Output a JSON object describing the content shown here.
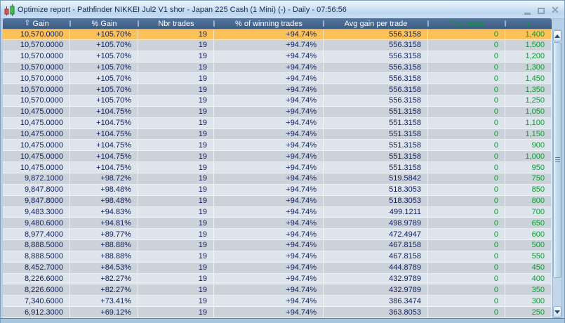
{
  "window": {
    "title": "Optimize report - Pathfinder NIKKEI Jul2 V1 shor - Japan 225 Cash (1 Mini) (-) - Daily - 07:56:56",
    "controls": {
      "close_glyph": "✕"
    }
  },
  "table": {
    "sort_icon": "⇧",
    "columns": [
      "Gain",
      "% Gain",
      "Nbr trades",
      "% of winning trades",
      "Avg gain per trade",
      "Tick mode",
      "a"
    ],
    "selected_row_index": 0,
    "rows": [
      [
        "10,570.0000",
        "+105.70%",
        "19",
        "+94.74%",
        "556.3158",
        "0",
        "1,400"
      ],
      [
        "10,570.0000",
        "+105.70%",
        "19",
        "+94.74%",
        "556.3158",
        "0",
        "1,500"
      ],
      [
        "10,570.0000",
        "+105.70%",
        "19",
        "+94.74%",
        "556.3158",
        "0",
        "1,200"
      ],
      [
        "10,570.0000",
        "+105.70%",
        "19",
        "+94.74%",
        "556.3158",
        "0",
        "1,300"
      ],
      [
        "10,570.0000",
        "+105.70%",
        "19",
        "+94.74%",
        "556.3158",
        "0",
        "1,450"
      ],
      [
        "10,570.0000",
        "+105.70%",
        "19",
        "+94.74%",
        "556.3158",
        "0",
        "1,350"
      ],
      [
        "10,570.0000",
        "+105.70%",
        "19",
        "+94.74%",
        "556.3158",
        "0",
        "1,250"
      ],
      [
        "10,475.0000",
        "+104.75%",
        "19",
        "+94.74%",
        "551.3158",
        "0",
        "1,050"
      ],
      [
        "10,475.0000",
        "+104.75%",
        "19",
        "+94.74%",
        "551.3158",
        "0",
        "1,100"
      ],
      [
        "10,475.0000",
        "+104.75%",
        "19",
        "+94.74%",
        "551.3158",
        "0",
        "1,150"
      ],
      [
        "10,475.0000",
        "+104.75%",
        "19",
        "+94.74%",
        "551.3158",
        "0",
        "900"
      ],
      [
        "10,475.0000",
        "+104.75%",
        "19",
        "+94.74%",
        "551.3158",
        "0",
        "1,000"
      ],
      [
        "10,475.0000",
        "+104.75%",
        "19",
        "+94.74%",
        "551.3158",
        "0",
        "950"
      ],
      [
        "9,872.1000",
        "+98.72%",
        "19",
        "+94.74%",
        "519.5842",
        "0",
        "750"
      ],
      [
        "9,847.8000",
        "+98.48%",
        "19",
        "+94.74%",
        "518.3053",
        "0",
        "850"
      ],
      [
        "9,847.8000",
        "+98.48%",
        "19",
        "+94.74%",
        "518.3053",
        "0",
        "800"
      ],
      [
        "9,483.3000",
        "+94.83%",
        "19",
        "+94.74%",
        "499.1211",
        "0",
        "700"
      ],
      [
        "9,480.6000",
        "+94.81%",
        "19",
        "+94.74%",
        "498.9789",
        "0",
        "650"
      ],
      [
        "8,977.4000",
        "+89.77%",
        "19",
        "+94.74%",
        "472.4947",
        "0",
        "600"
      ],
      [
        "8,888.5000",
        "+88.88%",
        "19",
        "+94.74%",
        "467.8158",
        "0",
        "500"
      ],
      [
        "8,888.5000",
        "+88.88%",
        "19",
        "+94.74%",
        "467.8158",
        "0",
        "550"
      ],
      [
        "8,452.7000",
        "+84.53%",
        "19",
        "+94.74%",
        "444.8789",
        "0",
        "450"
      ],
      [
        "8,226.6000",
        "+82.27%",
        "19",
        "+94.74%",
        "432.9789",
        "0",
        "400"
      ],
      [
        "8,226.6000",
        "+82.27%",
        "19",
        "+94.74%",
        "432.9789",
        "0",
        "350"
      ],
      [
        "7,340.6000",
        "+73.41%",
        "19",
        "+94.74%",
        "386.3474",
        "0",
        "300"
      ],
      [
        "6,912.3000",
        "+69.12%",
        "19",
        "+94.74%",
        "363.8053",
        "0",
        "250"
      ]
    ]
  },
  "colors": {
    "selected_row": "#fcc158",
    "row_light": "#dde4ec",
    "row_dark": "#ccd2d9",
    "header_blue": "#47688f",
    "value_green": "#0c9b33",
    "value_navy": "#0e1f5a"
  }
}
